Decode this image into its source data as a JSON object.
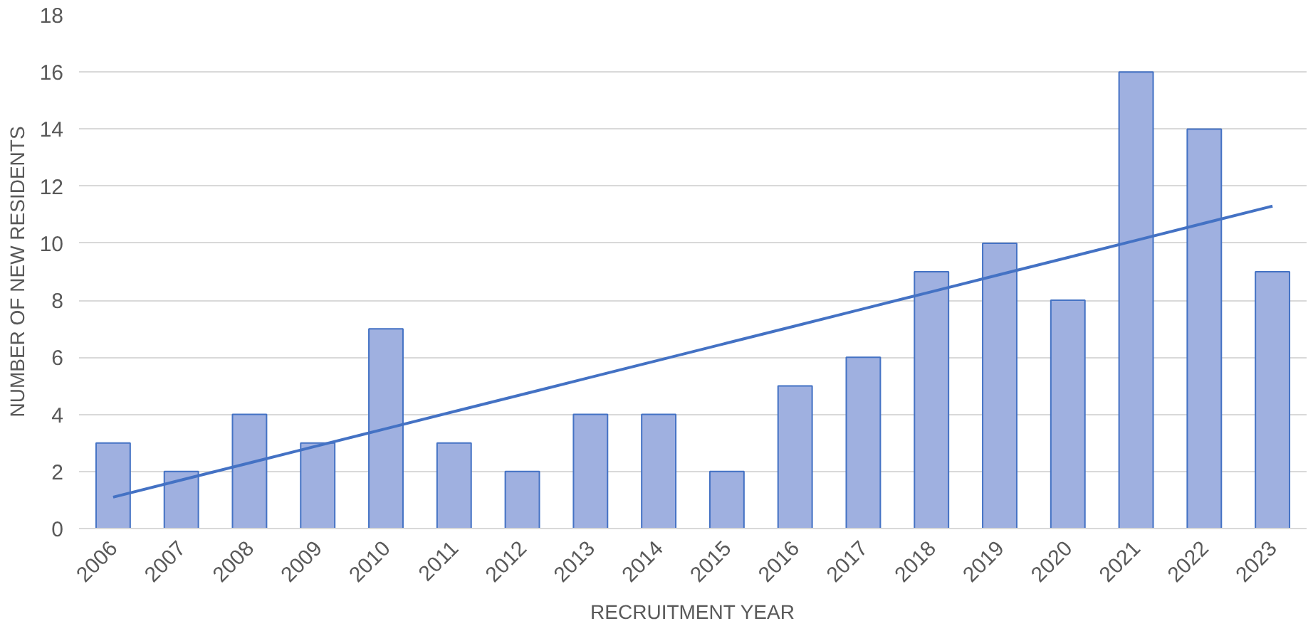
{
  "chart_data": {
    "type": "bar",
    "xlabel": "RECRUITMENT YEAR",
    "ylabel": "NUMBER OF NEW RESIDENTS",
    "categories": [
      "2006",
      "2007",
      "2008",
      "2009",
      "2010",
      "2011",
      "2012",
      "2013",
      "2014",
      "2015",
      "2016",
      "2017",
      "2018",
      "2019",
      "2020",
      "2021",
      "2022",
      "2023"
    ],
    "series": [
      {
        "color": "#9fb0e0",
        "values": [
          3,
          2,
          4,
          3,
          7,
          3,
          2,
          4,
          4,
          2,
          5,
          6,
          9,
          10,
          8,
          16,
          14,
          9
        ]
      },
      {
        "type": "line",
        "color": "#4472c4",
        "values": [
          1.1,
          1.7,
          2.3,
          2.9,
          3.5,
          4.1,
          4.7,
          5.3,
          5.9,
          6.5,
          7.1,
          7.7,
          8.3,
          8.9,
          9.5,
          10.1,
          10.7,
          11.3
        ]
      }
    ],
    "ylim": [
      0,
      18
    ],
    "yticks": [
      0,
      2,
      4,
      6,
      8,
      10,
      12,
      14,
      16,
      18
    ],
    "grid": "y"
  }
}
